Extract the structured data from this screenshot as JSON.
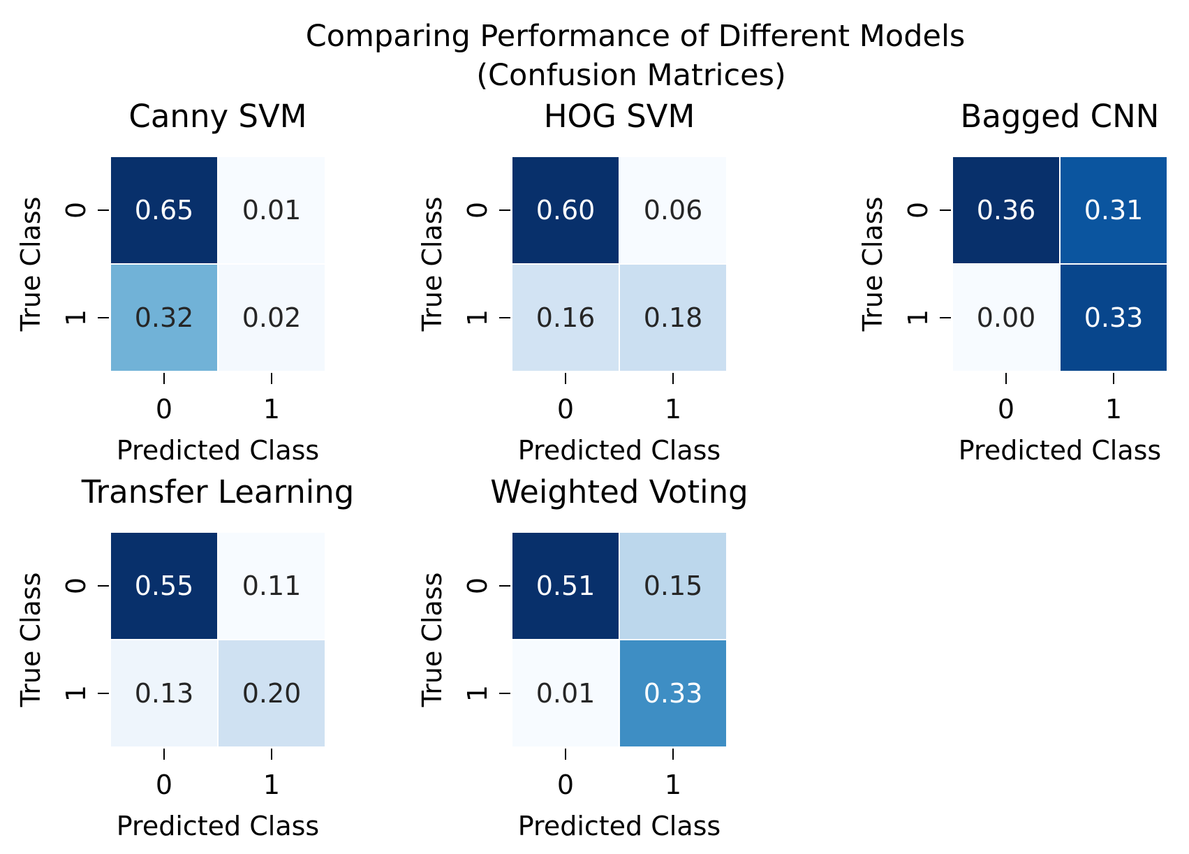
{
  "figure": {
    "title_line1": "Comparing Performance of Different Models",
    "title_line2": "(Confusion Matrices)"
  },
  "chart_data": [
    {
      "type": "heatmap",
      "title": "Canny SVM",
      "xlabel": "Predicted Class",
      "ylabel": "True Class",
      "x_categories": [
        "0",
        "1"
      ],
      "y_categories": [
        "0",
        "1"
      ],
      "values": [
        [
          0.65,
          0.01
        ],
        [
          0.32,
          0.02
        ]
      ],
      "labels": [
        [
          "0.65",
          "0.01"
        ],
        [
          "0.32",
          "0.02"
        ]
      ],
      "colormap": "Blues"
    },
    {
      "type": "heatmap",
      "title": "HOG SVM",
      "xlabel": "Predicted Class",
      "ylabel": "True Class",
      "x_categories": [
        "0",
        "1"
      ],
      "y_categories": [
        "0",
        "1"
      ],
      "values": [
        [
          0.6,
          0.06
        ],
        [
          0.16,
          0.18
        ]
      ],
      "labels": [
        [
          "0.60",
          "0.06"
        ],
        [
          "0.16",
          "0.18"
        ]
      ],
      "colormap": "Blues"
    },
    {
      "type": "heatmap",
      "title": "Bagged CNN",
      "xlabel": "Predicted Class",
      "ylabel": "True Class",
      "x_categories": [
        "0",
        "1"
      ],
      "y_categories": [
        "0",
        "1"
      ],
      "values": [
        [
          0.36,
          0.31
        ],
        [
          0.0,
          0.33
        ]
      ],
      "labels": [
        [
          "0.36",
          "0.31"
        ],
        [
          "0.00",
          "0.33"
        ]
      ],
      "colormap": "Blues"
    },
    {
      "type": "heatmap",
      "title": "Transfer Learning",
      "xlabel": "Predicted Class",
      "ylabel": "True Class",
      "x_categories": [
        "0",
        "1"
      ],
      "y_categories": [
        "0",
        "1"
      ],
      "values": [
        [
          0.55,
          0.11
        ],
        [
          0.13,
          0.2
        ]
      ],
      "labels": [
        [
          "0.55",
          "0.11"
        ],
        [
          "0.13",
          "0.20"
        ]
      ],
      "colormap": "Blues"
    },
    {
      "type": "heatmap",
      "title": "Weighted Voting",
      "xlabel": "Predicted Class",
      "ylabel": "True Class",
      "x_categories": [
        "0",
        "1"
      ],
      "y_categories": [
        "0",
        "1"
      ],
      "values": [
        [
          0.51,
          0.15
        ],
        [
          0.01,
          0.33
        ]
      ],
      "labels": [
        [
          "0.51",
          "0.15"
        ],
        [
          "0.01",
          "0.33"
        ]
      ],
      "colormap": "Blues"
    }
  ]
}
